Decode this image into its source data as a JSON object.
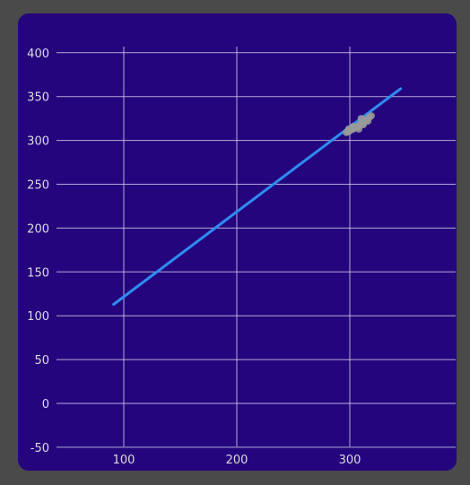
{
  "colors": {
    "page_background": "#4a4a4a",
    "chart_background": "#24057e",
    "grid": "#cfc8e8",
    "line": "#2f8cf0",
    "scatter": "#9a9a9a",
    "tick_label": "#dcdcdc"
  },
  "chart_data": {
    "type": "line",
    "title": "",
    "xlabel": "",
    "ylabel": "",
    "xlim": [
      40,
      375
    ],
    "ylim": [
      -50,
      410
    ],
    "grid": true,
    "legend": "none",
    "x_ticks": [
      100,
      200,
      300
    ],
    "y_ticks": [
      -50,
      0,
      50,
      100,
      150,
      200,
      250,
      300,
      350,
      400
    ],
    "x_tick_labels": [
      "100",
      "200",
      "300"
    ],
    "y_tick_labels": [
      "-50",
      "0",
      "50",
      "100",
      "150",
      "200",
      "250",
      "300",
      "350",
      "400"
    ],
    "series": [
      {
        "type": "line",
        "points": [
          [
            91,
            113
          ],
          [
            345,
            359
          ]
        ]
      },
      {
        "type": "scatter",
        "points": [
          [
            297,
            309
          ],
          [
            299,
            310
          ],
          [
            301,
            312
          ],
          [
            303,
            313
          ],
          [
            305,
            315
          ],
          [
            307,
            316
          ],
          [
            309,
            318
          ],
          [
            311,
            320
          ],
          [
            313,
            322
          ],
          [
            315,
            324
          ],
          [
            317,
            326
          ],
          [
            319,
            328
          ],
          [
            299,
            313
          ],
          [
            303,
            316
          ],
          [
            308,
            313
          ],
          [
            312,
            318
          ],
          [
            316,
            322
          ],
          [
            310,
            325
          ]
        ]
      }
    ]
  }
}
